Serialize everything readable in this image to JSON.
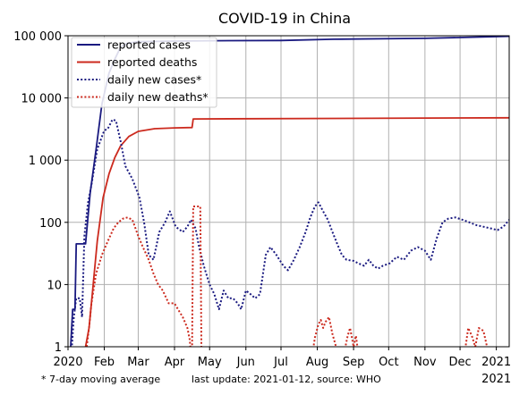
{
  "chart_data": {
    "type": "line",
    "title": "COVID-19 in China",
    "xlabel": "",
    "ylabel": "",
    "yscale": "log",
    "ylim": [
      1,
      100000
    ],
    "xlim": [
      "2020-01-01",
      "2021-01-12"
    ],
    "grid": true,
    "legend_position": "top-left",
    "y_ticks": [
      {
        "value": 1,
        "label": "1"
      },
      {
        "value": 10,
        "label": "10"
      },
      {
        "value": 100,
        "label": "100"
      },
      {
        "value": 1000,
        "label": "1 000"
      },
      {
        "value": 10000,
        "label": "10 000"
      },
      {
        "value": 100000,
        "label": "100 000"
      }
    ],
    "x_ticks": [
      {
        "date": "2020-01-01",
        "label": "2020"
      },
      {
        "date": "2020-02-01",
        "label": "Feb"
      },
      {
        "date": "2020-03-01",
        "label": "Mar"
      },
      {
        "date": "2020-04-01",
        "label": "Apr"
      },
      {
        "date": "2020-05-01",
        "label": "May"
      },
      {
        "date": "2020-06-01",
        "label": "Jun"
      },
      {
        "date": "2020-07-01",
        "label": "Jul"
      },
      {
        "date": "2020-08-01",
        "label": "Aug"
      },
      {
        "date": "2020-09-01",
        "label": "Sep"
      },
      {
        "date": "2020-10-01",
        "label": "Oct"
      },
      {
        "date": "2020-11-01",
        "label": "Nov"
      },
      {
        "date": "2020-12-01",
        "label": "Dec"
      },
      {
        "date": "2021-01-01",
        "label": "2021"
      }
    ],
    "x_year_label": "2021",
    "series": [
      {
        "name": "reported cases",
        "color": "#1a1a80",
        "style": "solid",
        "points": [
          [
            "2020-01-03",
            0.8
          ],
          [
            "2020-01-05",
            4
          ],
          [
            "2020-01-07",
            4
          ],
          [
            "2020-01-08",
            45
          ],
          [
            "2020-01-16",
            45
          ],
          [
            "2020-01-20",
            300
          ],
          [
            "2020-01-25",
            1500
          ],
          [
            "2020-01-30",
            8000
          ],
          [
            "2020-02-05",
            25000
          ],
          [
            "2020-02-10",
            42000
          ],
          [
            "2020-02-15",
            66000
          ],
          [
            "2020-02-20",
            75000
          ],
          [
            "2020-03-01",
            80000
          ],
          [
            "2020-04-01",
            82000
          ],
          [
            "2020-05-01",
            83000
          ],
          [
            "2020-07-01",
            84000
          ],
          [
            "2020-08-15",
            88000
          ],
          [
            "2020-11-01",
            91000
          ],
          [
            "2021-01-12",
            98000
          ]
        ]
      },
      {
        "name": "reported deaths",
        "color": "#cc2a1e",
        "style": "solid",
        "points": [
          [
            "2020-01-11",
            0.9
          ],
          [
            "2020-01-16",
            1
          ],
          [
            "2020-01-19",
            2
          ],
          [
            "2020-01-22",
            8
          ],
          [
            "2020-01-26",
            50
          ],
          [
            "2020-01-31",
            250
          ],
          [
            "2020-02-05",
            600
          ],
          [
            "2020-02-10",
            1100
          ],
          [
            "2020-02-15",
            1700
          ],
          [
            "2020-02-22",
            2400
          ],
          [
            "2020-03-01",
            2900
          ],
          [
            "2020-03-15",
            3200
          ],
          [
            "2020-04-01",
            3300
          ],
          [
            "2020-04-16",
            3350
          ],
          [
            "2020-04-17",
            4600
          ],
          [
            "2021-01-12",
            4800
          ]
        ]
      },
      {
        "name": "daily new cases*",
        "color": "#1a1a80",
        "style": "dotted",
        "points": [
          [
            "2020-01-04",
            0.8
          ],
          [
            "2020-01-06",
            3
          ],
          [
            "2020-01-08",
            6
          ],
          [
            "2020-01-11",
            6
          ],
          [
            "2020-01-13",
            3
          ],
          [
            "2020-01-15",
            60
          ],
          [
            "2020-01-18",
            200
          ],
          [
            "2020-01-21",
            400
          ],
          [
            "2020-01-26",
            1500
          ],
          [
            "2020-02-01",
            3000
          ],
          [
            "2020-02-04",
            3200
          ],
          [
            "2020-02-08",
            4500
          ],
          [
            "2020-02-11",
            4300
          ],
          [
            "2020-02-15",
            2000
          ],
          [
            "2020-02-19",
            800
          ],
          [
            "2020-02-25",
            500
          ],
          [
            "2020-03-02",
            250
          ],
          [
            "2020-03-06",
            100
          ],
          [
            "2020-03-10",
            30
          ],
          [
            "2020-03-14",
            25
          ],
          [
            "2020-03-19",
            70
          ],
          [
            "2020-03-24",
            100
          ],
          [
            "2020-03-28",
            150
          ],
          [
            "2020-04-02",
            85
          ],
          [
            "2020-04-08",
            70
          ],
          [
            "2020-04-12",
            85
          ],
          [
            "2020-04-15",
            110
          ],
          [
            "2020-04-19",
            80
          ],
          [
            "2020-04-22",
            40
          ],
          [
            "2020-04-26",
            20
          ],
          [
            "2020-05-01",
            10
          ],
          [
            "2020-05-05",
            7
          ],
          [
            "2020-05-09",
            4
          ],
          [
            "2020-05-13",
            8
          ],
          [
            "2020-05-17",
            6
          ],
          [
            "2020-05-21",
            6
          ],
          [
            "2020-05-25",
            5
          ],
          [
            "2020-05-28",
            4
          ],
          [
            "2020-06-01",
            8
          ],
          [
            "2020-06-05",
            7
          ],
          [
            "2020-06-09",
            6
          ],
          [
            "2020-06-13",
            7
          ],
          [
            "2020-06-18",
            30
          ],
          [
            "2020-06-22",
            40
          ],
          [
            "2020-06-27",
            30
          ],
          [
            "2020-07-03",
            20
          ],
          [
            "2020-07-07",
            17
          ],
          [
            "2020-07-12",
            25
          ],
          [
            "2020-07-17",
            40
          ],
          [
            "2020-07-22",
            70
          ],
          [
            "2020-07-26",
            120
          ],
          [
            "2020-07-30",
            180
          ],
          [
            "2020-08-02",
            210
          ],
          [
            "2020-08-06",
            150
          ],
          [
            "2020-08-10",
            110
          ],
          [
            "2020-08-14",
            70
          ],
          [
            "2020-08-18",
            45
          ],
          [
            "2020-08-22",
            30
          ],
          [
            "2020-08-26",
            25
          ],
          [
            "2020-09-01",
            24
          ],
          [
            "2020-09-05",
            22
          ],
          [
            "2020-09-10",
            20
          ],
          [
            "2020-09-14",
            25
          ],
          [
            "2020-09-18",
            20
          ],
          [
            "2020-09-22",
            18
          ],
          [
            "2020-09-26",
            20
          ],
          [
            "2020-10-02",
            22
          ],
          [
            "2020-10-08",
            28
          ],
          [
            "2020-10-14",
            25
          ],
          [
            "2020-10-20",
            35
          ],
          [
            "2020-10-26",
            40
          ],
          [
            "2020-11-01",
            35
          ],
          [
            "2020-11-06",
            25
          ],
          [
            "2020-11-11",
            55
          ],
          [
            "2020-11-16",
            100
          ],
          [
            "2020-11-21",
            115
          ],
          [
            "2020-11-27",
            120
          ],
          [
            "2020-12-03",
            110
          ],
          [
            "2020-12-09",
            100
          ],
          [
            "2020-12-15",
            90
          ],
          [
            "2020-12-21",
            85
          ],
          [
            "2020-12-27",
            80
          ],
          [
            "2021-01-02",
            75
          ],
          [
            "2021-01-07",
            85
          ],
          [
            "2021-01-12",
            110
          ]
        ]
      },
      {
        "name": "daily new deaths*",
        "color": "#cc2a1e",
        "style": "dotted",
        "segments": [
          [
            [
              "2020-01-17",
              1
            ],
            [
              "2020-01-19",
              2
            ],
            [
              "2020-01-21",
              5
            ],
            [
              "2020-01-25",
              15
            ],
            [
              "2020-01-30",
              30
            ],
            [
              "2020-02-04",
              50
            ],
            [
              "2020-02-09",
              80
            ],
            [
              "2020-02-13",
              100
            ],
            [
              "2020-02-17",
              115
            ],
            [
              "2020-02-21",
              120
            ],
            [
              "2020-02-25",
              110
            ],
            [
              "2020-03-01",
              60
            ],
            [
              "2020-03-05",
              40
            ],
            [
              "2020-03-10",
              25
            ],
            [
              "2020-03-14",
              15
            ],
            [
              "2020-03-18",
              10
            ],
            [
              "2020-03-22",
              8
            ],
            [
              "2020-03-27",
              5
            ],
            [
              "2020-04-01",
              5
            ],
            [
              "2020-04-04",
              4
            ],
            [
              "2020-04-08",
              3
            ],
            [
              "2020-04-12",
              2
            ],
            [
              "2020-04-14",
              1.3
            ],
            [
              "2020-04-15",
              0.8
            ]
          ],
          [
            [
              "2020-04-16",
              0.8
            ],
            [
              "2020-04-17",
              180
            ],
            [
              "2020-04-23",
              180
            ],
            [
              "2020-04-24",
              0.8
            ]
          ],
          [
            [
              "2020-07-28",
              0.8
            ],
            [
              "2020-07-30",
              1.4
            ],
            [
              "2020-08-02",
              2.3
            ],
            [
              "2020-08-04",
              2.7
            ],
            [
              "2020-08-06",
              2.0
            ],
            [
              "2020-08-08",
              2.5
            ],
            [
              "2020-08-11",
              3.0
            ],
            [
              "2020-08-14",
              1.6
            ],
            [
              "2020-08-17",
              1.0
            ],
            [
              "2020-08-19",
              0.8
            ]
          ],
          [
            [
              "2020-08-24",
              0.8
            ],
            [
              "2020-08-27",
              1.5
            ],
            [
              "2020-08-29",
              2.0
            ],
            [
              "2020-09-01",
              1.0
            ],
            [
              "2020-09-03",
              1.5
            ],
            [
              "2020-09-05",
              0.8
            ]
          ],
          [
            [
              "2020-12-05",
              0.8
            ],
            [
              "2020-12-08",
              2.0
            ],
            [
              "2020-12-11",
              1.5
            ],
            [
              "2020-12-14",
              1.0
            ],
            [
              "2020-12-17",
              2.0
            ],
            [
              "2020-12-21",
              1.8
            ],
            [
              "2020-12-24",
              1.0
            ],
            [
              "2020-12-27",
              0.8
            ]
          ],
          [
            [
              "2021-01-02",
              0.8
            ],
            [
              "2021-01-04",
              1.0
            ],
            [
              "2021-01-06",
              0.8
            ]
          ]
        ]
      }
    ]
  },
  "footer": {
    "note": "* 7-day moving average",
    "update": "last update: 2021-01-12, source: WHO"
  }
}
